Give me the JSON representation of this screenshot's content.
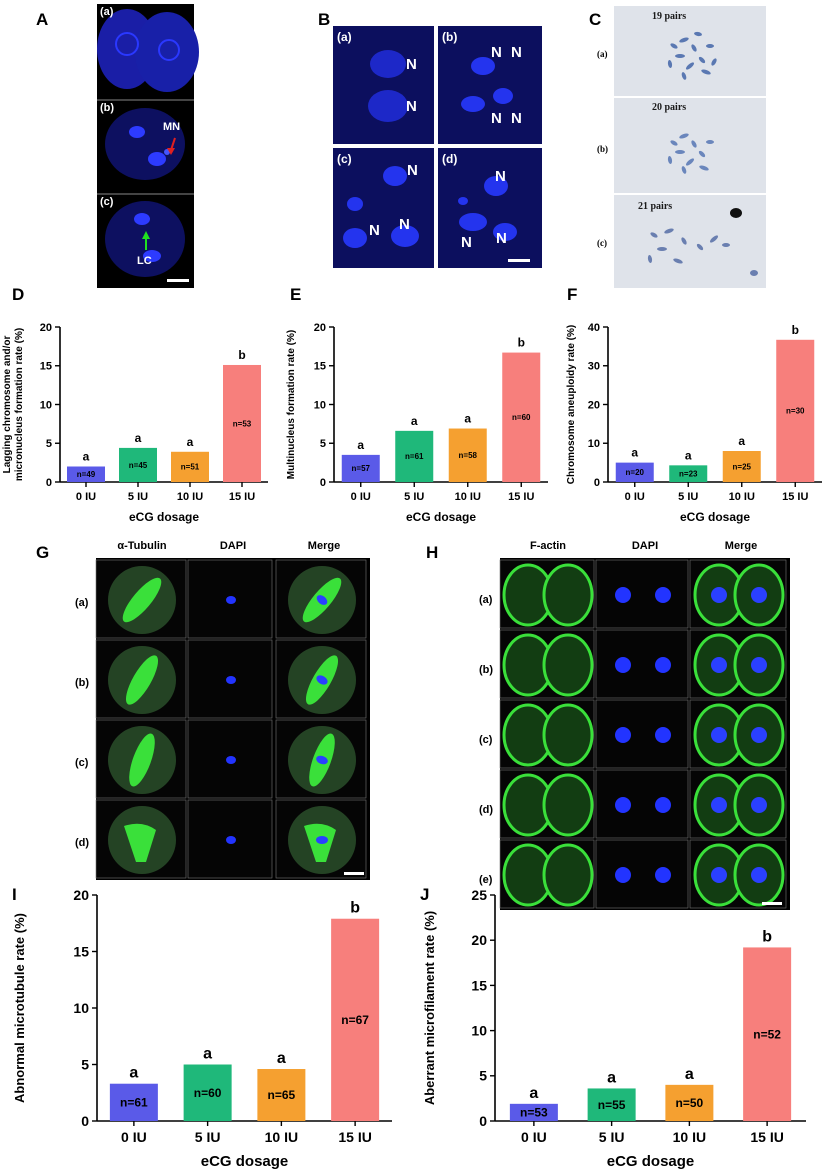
{
  "panel_labels": {
    "A": "A",
    "B": "B",
    "C": "C",
    "D": "D",
    "E": "E",
    "F": "F",
    "G": "G",
    "H": "H",
    "I": "I",
    "J": "J"
  },
  "panel_A": {
    "sub": [
      "(a)",
      "(b)",
      "(c)"
    ],
    "mn_label": "MN",
    "lc_label": "LC"
  },
  "panel_B": {
    "sub": [
      "(a)",
      "(b)",
      "(c)",
      "(d)"
    ],
    "n_label": "N"
  },
  "panel_C": {
    "titles": [
      "19 pairs",
      "20 pairs",
      "21 pairs"
    ],
    "rows": [
      "(a)",
      "(b)",
      "(c)"
    ]
  },
  "panel_G": {
    "headers": [
      "α-Tubulin",
      "DAPI",
      "Merge"
    ],
    "rows": [
      "(a)",
      "(b)",
      "(c)",
      "(d)"
    ]
  },
  "panel_H": {
    "headers": [
      "F-actin",
      "DAPI",
      "Merge"
    ],
    "rows": [
      "(a)",
      "(b)",
      "(c)",
      "(d)",
      "(e)"
    ]
  },
  "colors": {
    "0 IU": "#5a5ae8",
    "5 IU": "#1fb87a",
    "10 IU": "#f5a030",
    "15 IU": "#f77f7c",
    "blue_stain": "#1f35ff",
    "green_stain": "#2fd12f"
  },
  "chart_data": [
    {
      "id": "D",
      "type": "bar",
      "categories": [
        "0 IU",
        "5 IU",
        "10 IU",
        "15 IU"
      ],
      "values": [
        2.0,
        4.4,
        3.9,
        15.1
      ],
      "n_labels": [
        "n=49",
        "n=45",
        "n=51",
        "n=53"
      ],
      "sig": [
        "a",
        "a",
        "a",
        "b"
      ],
      "ylabel": "Lagging chromosome and/or micronucleus formation rate (%)",
      "xlabel": "eCG dosage",
      "ylim": [
        0,
        20
      ],
      "yticks": [
        0,
        5,
        10,
        15,
        20
      ]
    },
    {
      "id": "E",
      "type": "bar",
      "categories": [
        "0 IU",
        "5 IU",
        "10 IU",
        "15 IU"
      ],
      "values": [
        3.5,
        6.6,
        6.9,
        16.7
      ],
      "n_labels": [
        "n=57",
        "n=61",
        "n=58",
        "n=60"
      ],
      "sig": [
        "a",
        "a",
        "a",
        "b"
      ],
      "ylabel": "Multinucleus formation rate (%)",
      "xlabel": "eCG dosage",
      "ylim": [
        0,
        20
      ],
      "yticks": [
        0,
        5,
        10,
        15,
        20
      ]
    },
    {
      "id": "F",
      "type": "bar",
      "categories": [
        "0 IU",
        "5 IU",
        "10 IU",
        "15 IU"
      ],
      "values": [
        5.0,
        4.3,
        8.0,
        36.7
      ],
      "n_labels": [
        "n=20",
        "n=23",
        "n=25",
        "n=30"
      ],
      "sig": [
        "a",
        "a",
        "a",
        "b"
      ],
      "ylabel": "Chromosome aneuploidy rate (%)",
      "xlabel": "eCG dosage",
      "ylim": [
        0,
        40
      ],
      "yticks": [
        0,
        10,
        20,
        30,
        40
      ]
    },
    {
      "id": "I",
      "type": "bar",
      "categories": [
        "0 IU",
        "5 IU",
        "10 IU",
        "15 IU"
      ],
      "values": [
        3.3,
        5.0,
        4.6,
        17.9
      ],
      "n_labels": [
        "n=61",
        "n=60",
        "n=65",
        "n=67"
      ],
      "sig": [
        "a",
        "a",
        "a",
        "b"
      ],
      "ylabel": "Abnormal microtubule rate (%)",
      "xlabel": "eCG dosage",
      "ylim": [
        0,
        20
      ],
      "yticks": [
        0,
        5,
        10,
        15,
        20
      ]
    },
    {
      "id": "J",
      "type": "bar",
      "categories": [
        "0 IU",
        "5 IU",
        "10 IU",
        "15 IU"
      ],
      "values": [
        1.9,
        3.6,
        4.0,
        19.2
      ],
      "n_labels": [
        "n=53",
        "n=55",
        "n=50",
        "n=52"
      ],
      "sig": [
        "a",
        "a",
        "a",
        "b"
      ],
      "ylabel": "Aberrant microfilament rate (%)",
      "xlabel": "eCG dosage",
      "ylim": [
        0,
        25
      ],
      "yticks": [
        0,
        5,
        10,
        15,
        20,
        25
      ]
    }
  ]
}
